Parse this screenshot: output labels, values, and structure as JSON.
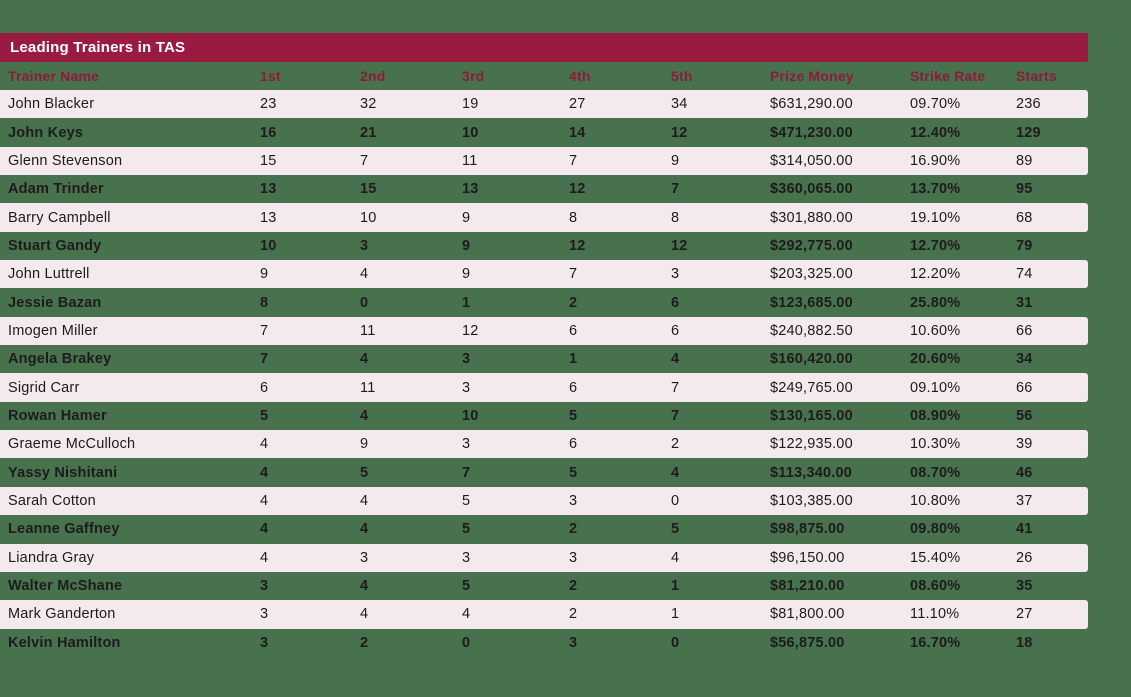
{
  "title": "Leading Trainers in TAS",
  "colors": {
    "background_green": "#48724e",
    "title_bar_maroon": "#9a1b41",
    "column_header_text": "#8a1c39",
    "row_pink": "#f4e9ec",
    "row_text": "#1c1c1c",
    "title_text": "#ffffff"
  },
  "table": {
    "columns": [
      {
        "key": "trainer-name",
        "label": "Trainer Name"
      },
      {
        "key": "1st",
        "label": "1st"
      },
      {
        "key": "2nd",
        "label": "2nd"
      },
      {
        "key": "3rd",
        "label": "3rd"
      },
      {
        "key": "4th",
        "label": "4th"
      },
      {
        "key": "5th",
        "label": "5th"
      },
      {
        "key": "prize-money",
        "label": "Prize Money"
      },
      {
        "key": "strike-rate",
        "label": "Strike Rate"
      },
      {
        "key": "starts",
        "label": "Starts"
      }
    ],
    "rows": [
      [
        "John Blacker",
        "23",
        "32",
        "19",
        "27",
        "34",
        "$631,290.00",
        "09.70%",
        "236"
      ],
      [
        "John Keys",
        "16",
        "21",
        "10",
        "14",
        "12",
        "$471,230.00",
        "12.40%",
        "129"
      ],
      [
        "Glenn Stevenson",
        "15",
        "7",
        "11",
        "7",
        "9",
        "$314,050.00",
        "16.90%",
        "89"
      ],
      [
        "Adam Trinder",
        "13",
        "15",
        "13",
        "12",
        "7",
        "$360,065.00",
        "13.70%",
        "95"
      ],
      [
        "Barry Campbell",
        "13",
        "10",
        "9",
        "8",
        "8",
        "$301,880.00",
        "19.10%",
        "68"
      ],
      [
        "Stuart Gandy",
        "10",
        "3",
        "9",
        "12",
        "12",
        "$292,775.00",
        "12.70%",
        "79"
      ],
      [
        "John Luttrell",
        "9",
        "4",
        "9",
        "7",
        "3",
        "$203,325.00",
        "12.20%",
        "74"
      ],
      [
        "Jessie Bazan",
        "8",
        "0",
        "1",
        "2",
        "6",
        "$123,685.00",
        "25.80%",
        "31"
      ],
      [
        "Imogen Miller",
        "7",
        "11",
        "12",
        "6",
        "6",
        "$240,882.50",
        "10.60%",
        "66"
      ],
      [
        "Angela Brakey",
        "7",
        "4",
        "3",
        "1",
        "4",
        "$160,420.00",
        "20.60%",
        "34"
      ],
      [
        "Sigrid Carr",
        "6",
        "11",
        "3",
        "6",
        "7",
        "$249,765.00",
        "09.10%",
        "66"
      ],
      [
        "Rowan Hamer",
        "5",
        "4",
        "10",
        "5",
        "7",
        "$130,165.00",
        "08.90%",
        "56"
      ],
      [
        "Graeme McCulloch",
        "4",
        "9",
        "3",
        "6",
        "2",
        "$122,935.00",
        "10.30%",
        "39"
      ],
      [
        "Yassy Nishitani",
        "4",
        "5",
        "7",
        "5",
        "4",
        "$113,340.00",
        "08.70%",
        "46"
      ],
      [
        "Sarah Cotton",
        "4",
        "4",
        "5",
        "3",
        "0",
        "$103,385.00",
        "10.80%",
        "37"
      ],
      [
        "Leanne Gaffney",
        "4",
        "4",
        "5",
        "2",
        "5",
        "$98,875.00",
        "09.80%",
        "41"
      ],
      [
        "Liandra Gray",
        "4",
        "3",
        "3",
        "3",
        "4",
        "$96,150.00",
        "15.40%",
        "26"
      ],
      [
        "Walter McShane",
        "3",
        "4",
        "5",
        "2",
        "1",
        "$81,210.00",
        "08.60%",
        "35"
      ],
      [
        "Mark Ganderton",
        "3",
        "4",
        "4",
        "2",
        "1",
        "$81,800.00",
        "11.10%",
        "27"
      ],
      [
        "Kelvin Hamilton",
        "3",
        "2",
        "0",
        "3",
        "0",
        "$56,875.00",
        "16.70%",
        "18"
      ]
    ]
  }
}
